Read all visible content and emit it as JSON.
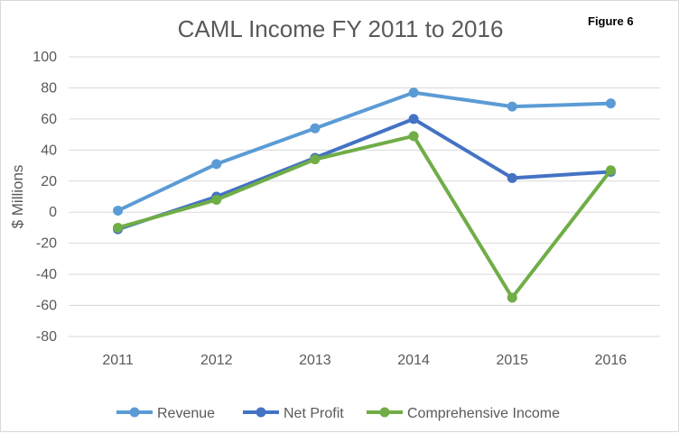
{
  "figure_label": "Figure 6",
  "colors": {
    "revenue": "#5b9bd5",
    "net_profit": "#4472c4",
    "comprehensive_income": "#70ad47",
    "grid": "#d9d9d9",
    "text": "#595959"
  },
  "chart_data": {
    "type": "line",
    "title": "CAML Income FY 2011 to 2016",
    "xlabel": "",
    "ylabel": "$ Millions",
    "ylim": [
      -80,
      100
    ],
    "yticks": [
      "100",
      "80",
      "60",
      "40",
      "20",
      "0",
      "-20",
      "-40",
      "-60",
      "-80"
    ],
    "categories": [
      "2011",
      "2012",
      "2013",
      "2014",
      "2015",
      "2016"
    ],
    "series": [
      {
        "name": "Revenue",
        "values": [
          1,
          31,
          54,
          77,
          68,
          70
        ]
      },
      {
        "name": "Net Profit",
        "values": [
          -11,
          10,
          35,
          60,
          22,
          26
        ]
      },
      {
        "name": "Comprehensive Income",
        "values": [
          -10,
          8,
          34,
          49,
          -55,
          27
        ]
      }
    ],
    "grid": true,
    "legend_position": "bottom"
  }
}
